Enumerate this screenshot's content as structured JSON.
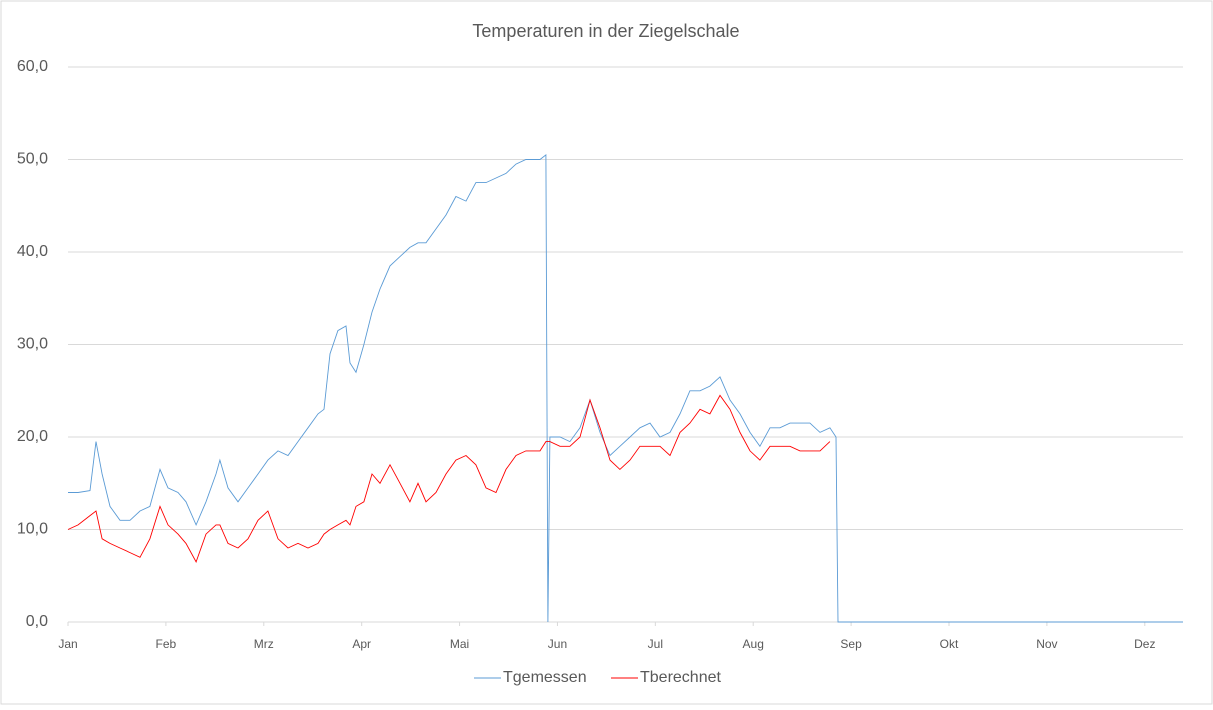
{
  "chart_data": {
    "type": "line",
    "title": "Temperaturen in der Ziegelschale",
    "x": [
      0,
      75,
      164,
      209,
      254,
      313,
      388,
      462,
      537,
      611,
      686,
      746,
      820,
      880,
      955,
      1029,
      1104,
      1133,
      1193,
      1268,
      1342,
      1417,
      1491,
      1566,
      1641,
      1715,
      1790,
      1864,
      1909,
      1954,
      2013,
      2073,
      2103,
      2148,
      2207,
      2267,
      2327,
      2401,
      2476,
      2550,
      2610,
      2670,
      2744,
      2819,
      2893,
      2968,
      3042,
      3117,
      3192,
      3266,
      3341,
      3415,
      3520,
      3564,
      3579,
      3594,
      3669,
      3743,
      3818,
      3893,
      3967,
      4042,
      4116,
      4191,
      4265,
      4340,
      4415,
      4489,
      4564,
      4638,
      4713,
      4787,
      4862,
      4937,
      5011,
      5086,
      5160,
      5235,
      5309,
      5384,
      5459,
      5533,
      5608,
      5682,
      5727,
      5742,
      6204,
      6950,
      7696,
      8315
    ],
    "series": [
      {
        "name": "Tgemessen",
        "color": "#5b9bd5",
        "values": [
          14,
          14,
          14.2,
          19.5,
          16,
          12.5,
          11,
          11,
          12,
          12.5,
          16.5,
          14.5,
          14,
          13,
          10.5,
          13,
          16,
          17.5,
          14.5,
          13,
          14.5,
          16,
          17.5,
          18.5,
          18,
          19.5,
          21,
          22.5,
          23,
          29,
          31.5,
          32,
          28,
          27,
          30,
          33.5,
          36,
          38.5,
          39.5,
          40.5,
          41,
          41,
          42.5,
          44,
          46,
          45.5,
          47.5,
          47.5,
          48,
          48.5,
          49.5,
          50,
          50,
          50.5,
          0,
          20,
          20,
          19.5,
          21,
          24,
          20.5,
          18,
          19,
          20,
          21,
          21.5,
          20,
          20.5,
          22.5,
          25,
          25,
          25.5,
          26.5,
          24,
          22.5,
          20.5,
          19,
          21,
          21,
          21.5,
          21.5,
          21.5,
          20.5,
          21,
          20,
          0,
          0,
          0,
          0,
          0
        ]
      },
      {
        "name": "Tberechnet",
        "color": "#ff0000",
        "values": [
          10,
          10.5,
          11.5,
          12,
          9,
          8.5,
          8,
          7.5,
          7,
          9,
          12.5,
          10.5,
          9.5,
          8.5,
          6.5,
          9.5,
          10.5,
          10.5,
          8.5,
          8,
          9,
          11,
          12,
          9,
          8,
          8.5,
          8,
          8.5,
          9.5,
          10,
          10.5,
          11,
          10.5,
          12.5,
          13,
          16,
          15,
          17,
          15,
          13,
          15,
          13,
          14,
          16,
          17.5,
          18,
          17,
          14.5,
          14,
          16.5,
          18,
          18.5,
          18.5,
          19.5,
          19.5,
          19.5,
          19,
          19,
          20,
          24,
          21,
          17.5,
          16.5,
          17.5,
          19,
          19,
          19,
          18,
          20.5,
          21.5,
          23,
          22.5,
          24.5,
          23,
          20.5,
          18.5,
          17.5,
          19,
          19,
          19,
          18.5,
          18.5,
          18.5,
          19.5,
          null,
          null,
          null,
          null,
          null,
          null
        ]
      }
    ],
    "xlim": [
      0,
      8315
    ],
    "xticks": [
      {
        "value": 0,
        "label": "Jan"
      },
      {
        "value": 730,
        "label": "Feb"
      },
      {
        "value": 1460,
        "label": "Mrz"
      },
      {
        "value": 2190,
        "label": "Apr"
      },
      {
        "value": 2920,
        "label": "Mai"
      },
      {
        "value": 3650,
        "label": "Jun"
      },
      {
        "value": 4380,
        "label": "Jul"
      },
      {
        "value": 5110,
        "label": "Aug"
      },
      {
        "value": 5840,
        "label": "Sep"
      },
      {
        "value": 6570,
        "label": "Okt"
      },
      {
        "value": 7300,
        "label": "Nov"
      },
      {
        "value": 8030,
        "label": "Dez"
      }
    ],
    "ylim": [
      0,
      60
    ],
    "yticks": [
      {
        "value": 0,
        "label": "0,0"
      },
      {
        "value": 10,
        "label": "10,0"
      },
      {
        "value": 20,
        "label": "20,0"
      },
      {
        "value": 30,
        "label": "30,0"
      },
      {
        "value": 40,
        "label": "40,0"
      },
      {
        "value": 50,
        "label": "50,0"
      },
      {
        "value": 60,
        "label": "60,0"
      }
    ],
    "grid": true,
    "legend": "bottom"
  }
}
